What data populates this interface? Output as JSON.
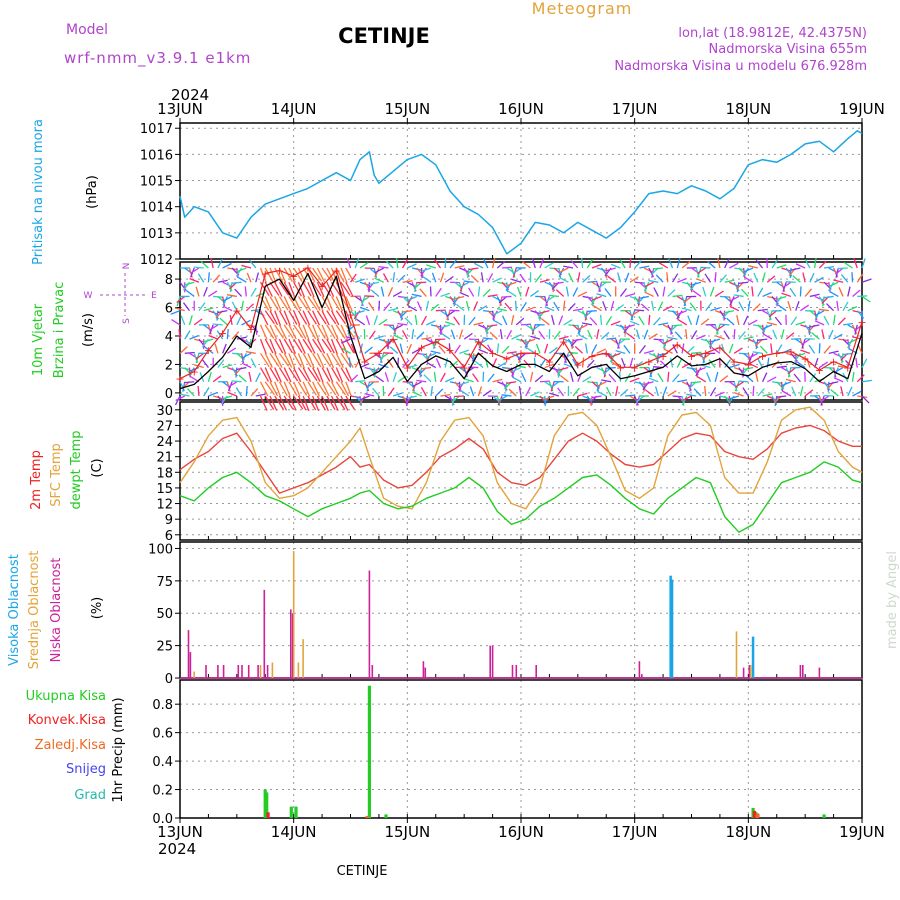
{
  "header": {
    "model_label": "Model",
    "model_name": "wrf-nmm_v3.9.1 e1km",
    "station": "CETINJE",
    "product": "Meteogram",
    "lonlat": "lon,lat (18.9812E, 42.4375N)",
    "altitude": "Nadmorska Visina 655m",
    "model_altitude": "Nadmorska Visina u modelu 676.928m",
    "footer_station": "CETINJE",
    "credit": "made by Angel"
  },
  "time_axis": {
    "year": "2024",
    "ticks": [
      "13JUN",
      "14JUN",
      "15JUN",
      "16JUN",
      "17JUN",
      "18JUN",
      "19JUN"
    ],
    "hours_total": 144
  },
  "colors": {
    "pressure": "#1aa6e6",
    "wind_speed": "#000000",
    "wind_gust": "#ee2222",
    "temp_2m": "#e8463c",
    "temp_sfc": "#e3a33b",
    "dewpoint": "#22cc22",
    "cloud_high": "#1aa6e6",
    "cloud_mid": "#e3a33b",
    "cloud_low": "#cc2299",
    "precip_total": "#22cc22",
    "precip_conv": "#ee2222",
    "precip_frozen": "#ee6a22",
    "snow": "#4444ee",
    "graupel": "#22bbaa",
    "grid": "#999999",
    "side_label_violet": "#b044cc"
  },
  "chart_data": [
    {
      "type": "line",
      "name": "pressure",
      "side_labels": [
        "Pritisak na nivou mora",
        "(hPa)"
      ],
      "ylim": [
        1012,
        1017.2
      ],
      "yticks": [
        1012,
        1013,
        1014,
        1015,
        1016,
        1017
      ],
      "grid": true,
      "x_hours": [
        0,
        1,
        3,
        6,
        9,
        12,
        15,
        18,
        21,
        24,
        27,
        30,
        33,
        36,
        38,
        40,
        41,
        42,
        44,
        48,
        51,
        54,
        57,
        60,
        63,
        66,
        69,
        72,
        75,
        78,
        81,
        84,
        87,
        90,
        93,
        96,
        99,
        102,
        105,
        108,
        111,
        114,
        117,
        120,
        123,
        126,
        129,
        132,
        135,
        138,
        141,
        143,
        144
      ],
      "values": [
        1014.4,
        1013.6,
        1014.0,
        1013.8,
        1013.0,
        1012.8,
        1013.6,
        1014.1,
        1014.3,
        1014.5,
        1014.7,
        1015.0,
        1015.3,
        1015.0,
        1015.8,
        1016.1,
        1015.2,
        1014.9,
        1015.2,
        1015.8,
        1016.0,
        1015.6,
        1014.6,
        1014.0,
        1013.7,
        1013.2,
        1012.2,
        1012.6,
        1013.4,
        1013.3,
        1013.0,
        1013.4,
        1013.1,
        1012.8,
        1013.2,
        1013.8,
        1014.5,
        1014.6,
        1014.5,
        1014.8,
        1014.6,
        1014.3,
        1014.7,
        1015.6,
        1015.8,
        1015.7,
        1016.0,
        1016.4,
        1016.5,
        1016.1,
        1016.6,
        1016.9,
        1016.8
      ]
    },
    {
      "type": "line",
      "name": "wind",
      "side_labels": [
        "10m Vjetar",
        "Brzina i Pravac",
        "(m/s)"
      ],
      "compass": [
        "N",
        "E",
        "S",
        "W"
      ],
      "ylim": [
        -0.5,
        9.2
      ],
      "yticks": [
        0,
        2,
        4,
        6,
        8
      ],
      "grid": true,
      "x_hours": [
        0,
        3,
        6,
        9,
        12,
        15,
        18,
        21,
        24,
        27,
        30,
        33,
        36,
        39,
        42,
        45,
        48,
        51,
        54,
        57,
        60,
        63,
        66,
        69,
        72,
        75,
        78,
        81,
        84,
        87,
        90,
        93,
        96,
        99,
        102,
        105,
        108,
        111,
        114,
        117,
        120,
        123,
        126,
        129,
        132,
        135,
        138,
        141,
        144
      ],
      "speed": [
        0.3,
        0.6,
        1.5,
        2.5,
        4.0,
        3.2,
        7.5,
        8.0,
        6.5,
        8.4,
        6.0,
        8.2,
        4.0,
        1.0,
        1.5,
        2.5,
        0.8,
        2.0,
        2.6,
        2.2,
        1.0,
        2.8,
        1.9,
        1.5,
        2.0,
        2.0,
        1.5,
        2.8,
        1.2,
        1.8,
        2.0,
        1.0,
        1.2,
        1.5,
        1.8,
        2.6,
        1.9,
        2.0,
        2.4,
        1.4,
        1.2,
        1.8,
        2.1,
        2.2,
        1.7,
        0.8,
        1.5,
        1.0,
        4.2
      ],
      "gust": [
        1.0,
        1.5,
        3.0,
        4.2,
        5.8,
        4.5,
        8.4,
        8.6,
        8.2,
        8.8,
        7.5,
        8.6,
        5.5,
        2.2,
        2.8,
        3.8,
        1.8,
        3.2,
        3.6,
        3.0,
        1.8,
        3.6,
        2.8,
        2.4,
        2.8,
        2.8,
        2.2,
        3.6,
        2.0,
        2.6,
        2.8,
        1.8,
        1.8,
        2.2,
        2.6,
        3.4,
        2.6,
        2.8,
        3.2,
        2.2,
        2.0,
        2.6,
        2.8,
        2.9,
        2.4,
        1.6,
        2.2,
        1.8,
        5.0
      ]
    },
    {
      "type": "line",
      "name": "temperature",
      "side_labels": [
        "2m Temp",
        "SFC Temp",
        "dewpt Temp",
        "(C)"
      ],
      "ylim": [
        5,
        31.5
      ],
      "yticks": [
        6,
        9,
        12,
        15,
        18,
        21,
        24,
        27,
        30
      ],
      "grid": true,
      "x_hours": [
        0,
        3,
        6,
        9,
        12,
        15,
        18,
        21,
        24,
        27,
        30,
        33,
        36,
        38,
        40,
        43,
        46,
        49,
        52,
        55,
        58,
        61,
        64,
        67,
        70,
        73,
        76,
        79,
        82,
        85,
        88,
        91,
        94,
        97,
        100,
        103,
        106,
        109,
        112,
        115,
        118,
        121,
        124,
        127,
        130,
        133,
        136,
        139,
        142,
        144
      ],
      "series": [
        {
          "name": "2m Temp",
          "values": [
            18.5,
            20.5,
            22.0,
            24.5,
            25.5,
            22.0,
            18.0,
            14.0,
            15.0,
            16.0,
            17.5,
            19.0,
            21.0,
            19.0,
            19.5,
            16.5,
            15.0,
            15.5,
            18.0,
            21.0,
            22.5,
            24.5,
            22.5,
            18.0,
            16.0,
            15.5,
            17.0,
            20.5,
            24.0,
            25.5,
            24.0,
            21.5,
            19.5,
            19.0,
            19.5,
            22.0,
            24.5,
            25.5,
            25.0,
            22.0,
            21.0,
            20.5,
            22.5,
            25.5,
            26.5,
            27.0,
            26.0,
            24.0,
            23.0,
            23.0
          ]
        },
        {
          "name": "SFC Temp",
          "values": [
            16.0,
            20.0,
            25.0,
            28.0,
            28.5,
            24.0,
            16.0,
            13.0,
            13.5,
            15.0,
            18.0,
            21.0,
            24.0,
            26.5,
            21.0,
            13.0,
            11.5,
            11.0,
            16.0,
            24.0,
            28.0,
            28.5,
            25.0,
            16.0,
            12.0,
            11.0,
            15.0,
            25.0,
            29.0,
            29.5,
            27.0,
            21.0,
            14.5,
            13.0,
            15.0,
            25.0,
            29.0,
            29.5,
            27.0,
            17.0,
            14.0,
            14.0,
            20.0,
            28.0,
            30.0,
            30.5,
            28.0,
            22.0,
            19.0,
            18.0
          ]
        },
        {
          "name": "dewpt Temp",
          "values": [
            13.5,
            12.5,
            15.0,
            17.0,
            18.0,
            16.0,
            13.5,
            12.5,
            11.0,
            9.5,
            11.0,
            12.0,
            13.0,
            14.0,
            14.5,
            12.0,
            11.0,
            11.5,
            13.0,
            14.0,
            15.0,
            17.0,
            15.0,
            10.5,
            8.0,
            9.0,
            11.5,
            13.0,
            15.0,
            17.0,
            17.5,
            15.5,
            13.0,
            11.0,
            10.0,
            13.0,
            15.0,
            17.0,
            16.0,
            9.5,
            6.5,
            8.0,
            12.0,
            16.0,
            17.0,
            18.0,
            20.0,
            19.0,
            16.5,
            16.0
          ]
        }
      ]
    },
    {
      "type": "bar",
      "name": "clouds",
      "side_labels": [
        "Visoka Oblacnost",
        "Srednja Oblacnost",
        "Niska Oblacnost",
        "(%)"
      ],
      "ylim": [
        0,
        105
      ],
      "yticks": [
        0,
        25,
        50,
        75,
        100
      ],
      "grid": true,
      "bars": [
        {
          "layer": "Niska Oblacnost",
          "x_hours": [
            1.8,
            2.2,
            5.5,
            8.0,
            9.2,
            12.3,
            13.1,
            14.5,
            16.5,
            17.8,
            18.5,
            23.4,
            23.8,
            40.0,
            40.6,
            51.4,
            51.8,
            65.5,
            66.0,
            70.2,
            71.0,
            75.2,
            97.0,
            97.5,
            119.0,
            120.2,
            131.0,
            131.5,
            135.0
          ],
          "values": [
            37,
            20,
            10,
            10,
            10,
            10,
            10,
            10,
            10,
            68,
            10,
            53,
            50,
            83,
            10,
            13,
            8,
            25,
            25,
            10,
            10,
            10,
            13,
            3,
            8,
            10,
            10,
            10,
            8
          ]
        },
        {
          "layer": "Srednja Oblacnost",
          "x_hours": [
            3.0,
            17.0,
            19.5,
            24.0,
            25.0,
            26.0,
            117.5,
            120.5
          ],
          "values": [
            5,
            10,
            12,
            98,
            12,
            30,
            36,
            10
          ]
        },
        {
          "layer": "Visoka Oblacnost",
          "x_hours": [
            103.6,
            103.9,
            121.0
          ],
          "values": [
            79,
            76,
            32
          ]
        }
      ]
    },
    {
      "type": "bar",
      "name": "precipitation",
      "side_labels": [
        "1hr Precip (mm)"
      ],
      "legend": [
        "Ukupna Kisa",
        "Konvek.Kisa",
        "Zaledj.Kisa",
        "Snijeg",
        "Grad"
      ],
      "ylim": [
        0,
        0.97
      ],
      "yticks": [
        0.0,
        0.2,
        0.4,
        0.6,
        0.8
      ],
      "grid": true,
      "bars": [
        {
          "layer": "Ukupna Kisa",
          "x_hours": [
            18.0,
            18.3,
            23.5,
            24.5,
            40.0,
            43.5,
            121.0,
            121.6,
            136.0
          ],
          "values": [
            0.2,
            0.18,
            0.08,
            0.08,
            0.93,
            0.025,
            0.07,
            0.04,
            0.025
          ]
        },
        {
          "layer": "Konvek.Kisa",
          "x_hours": [
            18.6,
            121.3,
            122.0
          ],
          "values": [
            0.04,
            0.05,
            0.03
          ]
        },
        {
          "layer": "Zaledj.Kisa",
          "x_hours": [
            39.5,
            121.9
          ],
          "values": [
            0.015,
            0.03
          ]
        }
      ]
    }
  ]
}
